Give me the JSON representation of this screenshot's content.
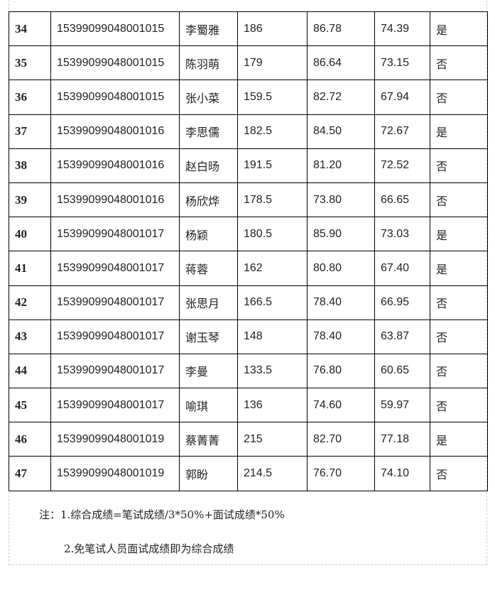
{
  "rows": [
    [
      "34",
      "15399099048001015",
      "李蜀雅",
      "186",
      "86.78",
      "74.39",
      "是"
    ],
    [
      "35",
      "15399099048001015",
      "陈羽萌",
      "179",
      "86.64",
      "73.15",
      "否"
    ],
    [
      "36",
      "15399099048001015",
      "张小菜",
      "159.5",
      "82.72",
      "67.94",
      "否"
    ],
    [
      "37",
      "15399099048001016",
      "李思儒",
      "182.5",
      "84.50",
      "72.67",
      "是"
    ],
    [
      "38",
      "15399099048001016",
      "赵白旸",
      "191.5",
      "81.20",
      "72.52",
      "否"
    ],
    [
      "39",
      "15399099048001016",
      "杨欣烨",
      "178.5",
      "73.80",
      "66.65",
      "否"
    ],
    [
      "40",
      "15399099048001017",
      "杨颖",
      "180.5",
      "85.90",
      "73.03",
      "是"
    ],
    [
      "41",
      "15399099048001017",
      "蒋蓉",
      "162",
      "80.80",
      "67.40",
      "是"
    ],
    [
      "42",
      "15399099048001017",
      "张思月",
      "166.5",
      "78.40",
      "66.95",
      "否"
    ],
    [
      "43",
      "15399099048001017",
      "谢玉琴",
      "148",
      "78.40",
      "63.87",
      "否"
    ],
    [
      "44",
      "15399099048001017",
      "李曼",
      "133.5",
      "76.80",
      "60.65",
      "否"
    ],
    [
      "45",
      "15399099048001017",
      "喻琪",
      "136",
      "74.60",
      "59.97",
      "否"
    ],
    [
      "46",
      "15399099048001019",
      "蔡菁菁",
      "215",
      "82.70",
      "77.18",
      "是"
    ],
    [
      "47",
      "15399099048001019",
      "郭盼",
      "214.5",
      "76.70",
      "74.10",
      "否"
    ]
  ],
  "notes": {
    "line1": "注：1.综合成绩=笔试成绩/3*50%+面试成绩*50%",
    "line2": "2.免笔试人员面试成绩即为综合成绩"
  }
}
